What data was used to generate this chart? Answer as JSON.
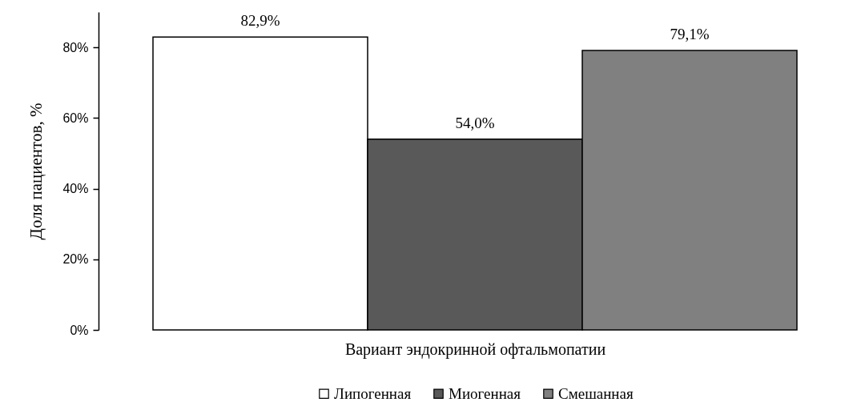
{
  "chart_data": {
    "type": "bar",
    "categories": [
      null
    ],
    "xlabel": "Вариант эндокринной офтальмопатии",
    "ylabel": "Доля пациентов, %",
    "series": [
      {
        "name": "Липогенная",
        "color": "#ffffff",
        "values": [
          82.9
        ],
        "value_labels": [
          "82,9%"
        ]
      },
      {
        "name": "Миогенная",
        "color": "#595959",
        "values": [
          54.0
        ],
        "value_labels": [
          "54,0%"
        ]
      },
      {
        "name": "Смешанная",
        "color": "#808080",
        "values": [
          79.1
        ],
        "value_labels": [
          "79,1%"
        ]
      }
    ],
    "ylim": [
      0,
      90
    ],
    "yticks": [
      {
        "value": 0,
        "label": "0%"
      },
      {
        "value": 20,
        "label": "20%"
      },
      {
        "value": 40,
        "label": "40%"
      },
      {
        "value": 60,
        "label": "60%"
      },
      {
        "value": 80,
        "label": "80%"
      }
    ],
    "grid": false,
    "legend": "bottom"
  }
}
